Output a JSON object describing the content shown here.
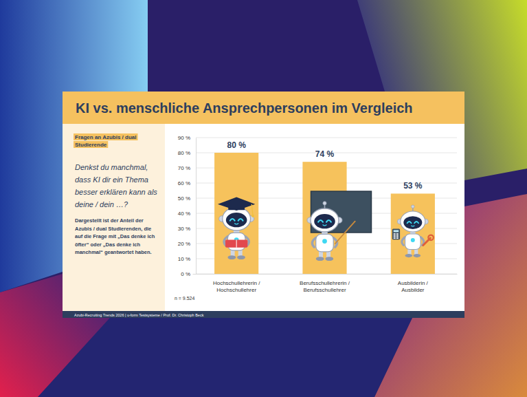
{
  "chart_data": {
    "type": "bar",
    "title": "KI vs. menschliche Ansprechpersonen im Vergleich",
    "subtitle": "Denkst du manchmal, dass KI dir ein Thema besser erklären kann als deine / dein …?",
    "annotations": [
      "Fragen an Azubis / dual Studierende",
      "Dargestellt ist der Anteil der Azubis / dual Studierenden, die auf die Frage mit „Das denke ich öfter“ oder „Das denke ich manchmal“ geantwortet haben.",
      "n = 9.524",
      "Azubi-Recruiting Trends 2026 | u-form Testsysteme / Prof. Dr. Christoph Beck"
    ],
    "categories": [
      "Hochschullehrerin / Hochschullehrer",
      "Berufsschullehrerin / Berufsschullehrer",
      "Ausbilderin / Ausbilder"
    ],
    "values": [
      80,
      74,
      53
    ],
    "value_labels": [
      "80 %",
      "74 %",
      "53 %"
    ],
    "data_labels": true,
    "color": "#f6c25c",
    "ylim": [
      0,
      90
    ],
    "yticks": [
      {
        "value": 0,
        "label": "0 %"
      },
      {
        "value": 10,
        "label": "10 %"
      },
      {
        "value": 20,
        "label": "20 %"
      },
      {
        "value": 30,
        "label": "30 %"
      },
      {
        "value": 40,
        "label": "40 %"
      },
      {
        "value": 50,
        "label": "50 %"
      },
      {
        "value": 60,
        "label": "60 %"
      },
      {
        "value": 70,
        "label": "70 %"
      },
      {
        "value": 80,
        "label": "80 %"
      },
      {
        "value": 90,
        "label": "90 %"
      }
    ],
    "grid": true
  }
}
